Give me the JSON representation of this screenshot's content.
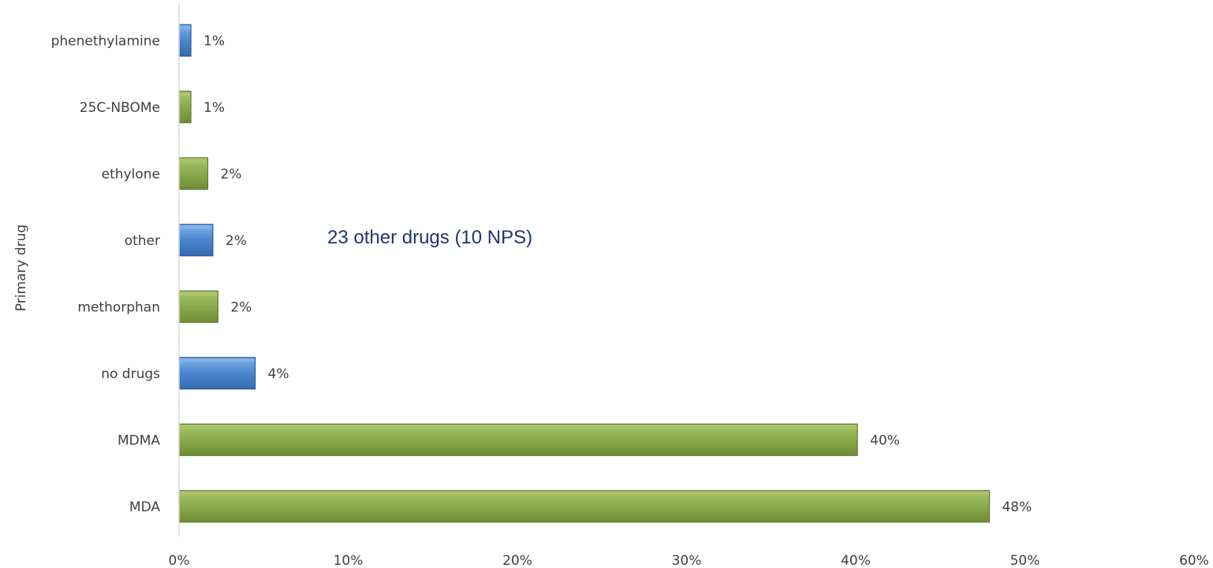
{
  "chart_data": {
    "type": "bar",
    "orientation": "horizontal",
    "title": "",
    "xlabel": "",
    "ylabel": "Primary drug",
    "categories": [
      "MDA",
      "MDMA",
      "no drugs",
      "methorphan",
      "other",
      "ethylone",
      "25C-NBOMe",
      "phenethylamine"
    ],
    "values": [
      48,
      40,
      4,
      2,
      2,
      2,
      1,
      1
    ],
    "bar_lengths": [
      47.9,
      40.1,
      4.5,
      2.3,
      2.0,
      1.7,
      0.7,
      0.7
    ],
    "value_labels": [
      "48%",
      "40%",
      "4%",
      "2%",
      "2%",
      "2%",
      "1%",
      "1%"
    ],
    "bar_colors": [
      "green",
      "green",
      "blue",
      "green",
      "blue",
      "green",
      "green",
      "blue"
    ],
    "xlim": [
      0,
      60
    ],
    "x_ticks": [
      "0%",
      "10%",
      "20%",
      "30%",
      "40%",
      "50%",
      "60%"
    ],
    "grid": false,
    "legend": "none",
    "annotation": "23 other drugs (10 NPS)",
    "colors": {
      "green": "#8aaa4a",
      "green_dark": "#5f7a2c",
      "green_light": "#a9c56c",
      "blue": "#4a86cf",
      "blue_dark": "#2a5a9c",
      "blue_light": "#7fb0e8",
      "axis": "#d9d9d9",
      "text": "#404040",
      "annotation_text": "#1f3570"
    }
  }
}
